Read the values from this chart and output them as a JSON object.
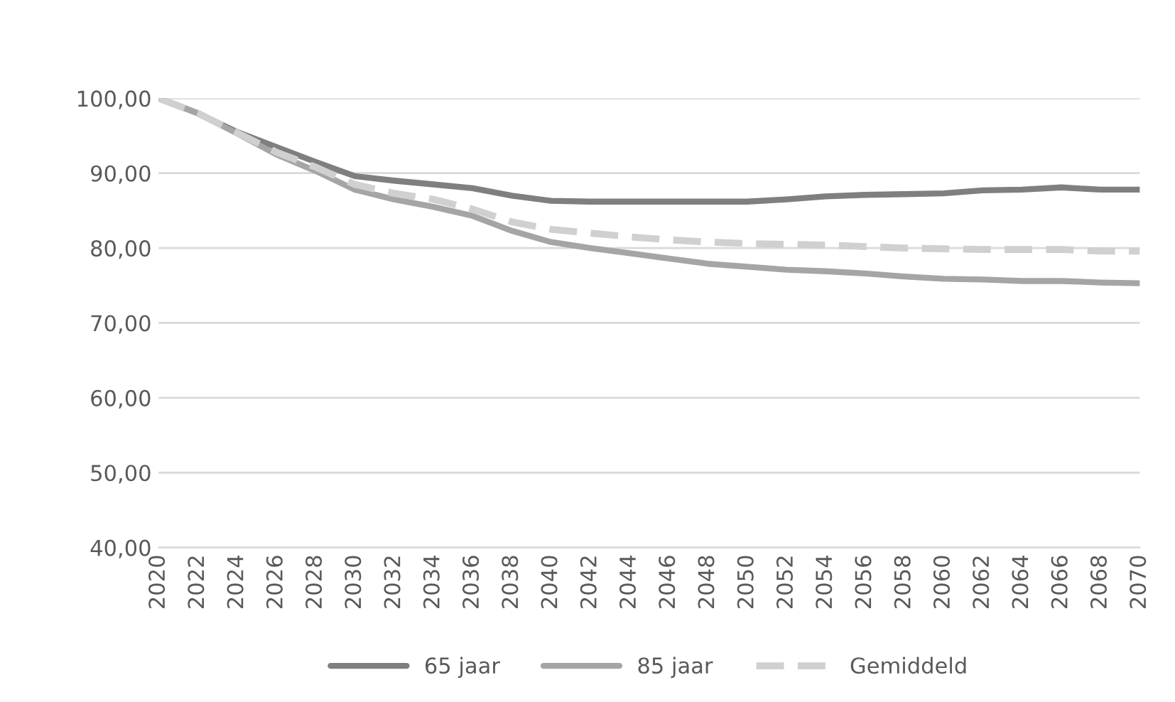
{
  "chart_data": {
    "type": "line",
    "x": [
      2020,
      2022,
      2024,
      2026,
      2028,
      2030,
      2032,
      2034,
      2036,
      2038,
      2040,
      2042,
      2044,
      2046,
      2048,
      2050,
      2052,
      2054,
      2056,
      2058,
      2060,
      2062,
      2064,
      2066,
      2068,
      2070
    ],
    "series": [
      {
        "name": "65 jaar",
        "color": "#7f7f7f",
        "line_style": "solid",
        "values": [
          100,
          98,
          95.5,
          93.5,
          91.5,
          89.6,
          89,
          88.5,
          88,
          87,
          86.3,
          86.2,
          86.2,
          86.2,
          86.2,
          86.2,
          86.5,
          86.9,
          87.1,
          87.2,
          87.3,
          87.7,
          87.8,
          88.1,
          87.8,
          87.8
        ]
      },
      {
        "name": "85 jaar",
        "color": "#a5a5a5",
        "line_style": "solid",
        "values": [
          100,
          98,
          95.3,
          92.5,
          90.3,
          87.8,
          86.5,
          85.5,
          84.3,
          82.3,
          80.8,
          80,
          79.3,
          78.6,
          77.9,
          77.5,
          77.1,
          76.9,
          76.6,
          76.2,
          75.9,
          75.8,
          75.6,
          75.6,
          75.4,
          75.3
        ]
      },
      {
        "name": "Gemiddeld",
        "color": "#d0d0d0",
        "line_style": "dashed",
        "values": [
          100,
          98,
          95.4,
          92.8,
          90.8,
          88.5,
          87.3,
          86.5,
          85.2,
          83.5,
          82.5,
          82,
          81.5,
          81.1,
          80.8,
          80.6,
          80.5,
          80.4,
          80.2,
          80,
          79.9,
          79.8,
          79.8,
          79.8,
          79.6,
          79.6
        ]
      }
    ],
    "xlim": [
      2020,
      2070
    ],
    "xticks": [
      2020,
      2022,
      2024,
      2026,
      2028,
      2030,
      2032,
      2034,
      2036,
      2038,
      2040,
      2042,
      2044,
      2046,
      2048,
      2050,
      2052,
      2054,
      2056,
      2058,
      2060,
      2062,
      2064,
      2066,
      2068,
      2070
    ],
    "ylim": [
      40,
      100
    ],
    "yticks": [
      {
        "value": 40,
        "label": "40,00"
      },
      {
        "value": 50,
        "label": "50,00"
      },
      {
        "value": 60,
        "label": "60,00"
      },
      {
        "value": 70,
        "label": "70,00"
      },
      {
        "value": 80,
        "label": "80,00"
      },
      {
        "value": 90,
        "label": "90,00"
      },
      {
        "value": 100,
        "label": "100,00"
      }
    ],
    "grid": "y",
    "legend": "bottom",
    "marker": "none"
  }
}
